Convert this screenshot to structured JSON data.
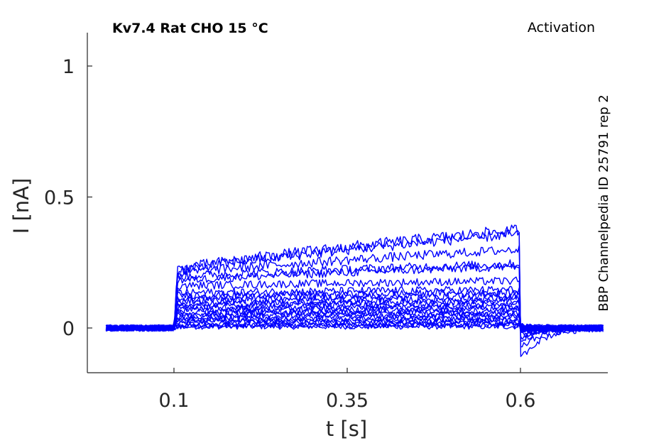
{
  "chart_data": {
    "type": "line",
    "title": "Kv7.4  Rat  CHO  15 °C",
    "protocol": "Activation",
    "side_label": "BBP Channelpedia ID 25791 rep 2",
    "xlabel": "t [s]",
    "ylabel": "I [nA]",
    "xlim": [
      0.0,
      0.75
    ],
    "ylim": [
      -0.17,
      1.12
    ],
    "x_ticks": [
      {
        "v": 0.1,
        "label": "0.1"
      },
      {
        "v": 0.35,
        "label": "0.35"
      },
      {
        "v": 0.6,
        "label": "0.6"
      }
    ],
    "y_ticks": [
      {
        "v": 0,
        "label": "0"
      },
      {
        "v": 0.5,
        "label": "0.5"
      },
      {
        "v": 1,
        "label": "1"
      }
    ],
    "grid": false,
    "line_color": "#0000ff",
    "pulse": {
      "start": 0.1,
      "end": 0.6,
      "trace_start": 0.002,
      "trace_end": 0.72
    },
    "series": [
      {
        "start": 0.005,
        "end": 0.005,
        "jitter": 0.01,
        "tail": -0.005
      },
      {
        "start": 0.008,
        "end": 0.01,
        "jitter": 0.01,
        "tail": -0.003
      },
      {
        "start": 0.012,
        "end": 0.015,
        "jitter": 0.01,
        "tail": 0.0
      },
      {
        "start": 0.018,
        "end": 0.022,
        "jitter": 0.011,
        "tail": 0.002
      },
      {
        "start": 0.024,
        "end": 0.028,
        "jitter": 0.011,
        "tail": -0.008
      },
      {
        "start": 0.03,
        "end": 0.035,
        "jitter": 0.011,
        "tail": 0.004
      },
      {
        "start": 0.036,
        "end": 0.042,
        "jitter": 0.012,
        "tail": -0.01
      },
      {
        "start": 0.044,
        "end": 0.05,
        "jitter": 0.012,
        "tail": 0.006
      },
      {
        "start": 0.052,
        "end": 0.058,
        "jitter": 0.012,
        "tail": -0.004
      },
      {
        "start": 0.06,
        "end": 0.066,
        "jitter": 0.012,
        "tail": 0.002
      },
      {
        "start": 0.068,
        "end": 0.074,
        "jitter": 0.013,
        "tail": -0.012
      },
      {
        "start": 0.076,
        "end": 0.083,
        "jitter": 0.013,
        "tail": 0.0
      },
      {
        "start": 0.085,
        "end": 0.092,
        "jitter": 0.013,
        "tail": -0.006
      },
      {
        "start": 0.094,
        "end": 0.102,
        "jitter": 0.013,
        "tail": 0.003
      },
      {
        "start": 0.104,
        "end": 0.112,
        "jitter": 0.014,
        "tail": -0.015
      },
      {
        "start": 0.114,
        "end": 0.123,
        "jitter": 0.014,
        "tail": 0.005
      },
      {
        "start": 0.124,
        "end": 0.134,
        "jitter": 0.014,
        "tail": -0.008
      },
      {
        "start": 0.134,
        "end": 0.146,
        "jitter": 0.015,
        "tail": 0.0
      },
      {
        "start": 0.16,
        "end": 0.18,
        "jitter": 0.015,
        "tail": -0.02
      },
      {
        "start": 0.18,
        "end": 0.235,
        "jitter": 0.016,
        "tail": -0.03
      },
      {
        "start": 0.195,
        "end": 0.245,
        "jitter": 0.017,
        "tail": -0.035
      },
      {
        "start": 0.205,
        "end": 0.3,
        "jitter": 0.018,
        "tail": -0.045
      },
      {
        "start": 0.215,
        "end": 0.36,
        "jitter": 0.02,
        "tail": -0.08
      },
      {
        "start": 0.218,
        "end": 0.375,
        "jitter": 0.022,
        "tail": -0.12
      }
    ]
  }
}
